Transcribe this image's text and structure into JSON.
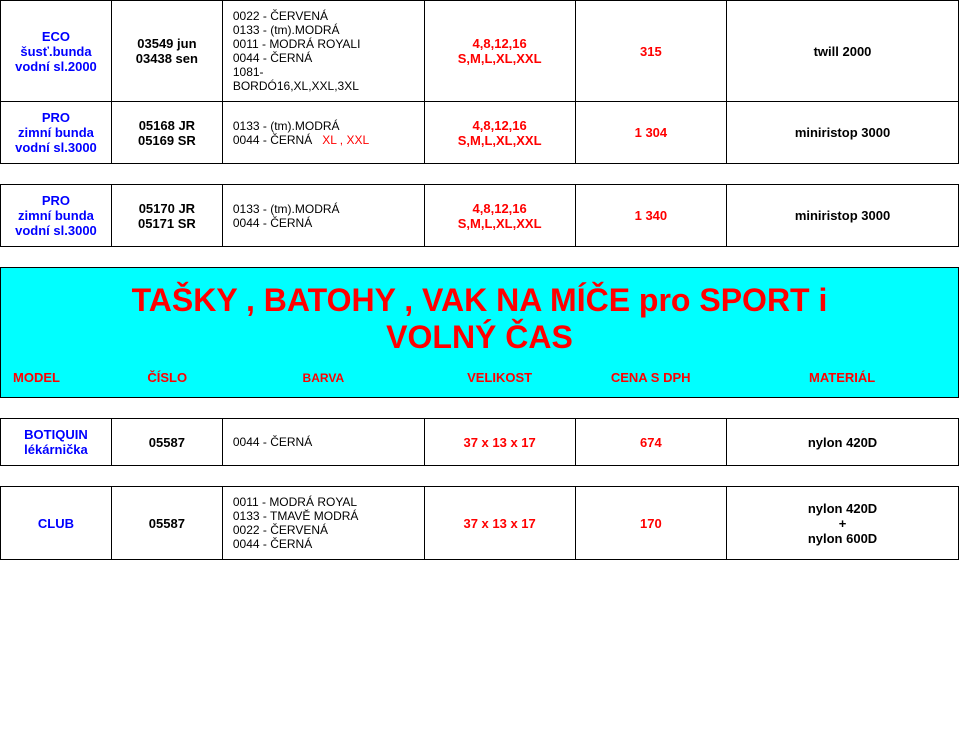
{
  "rows_top": [
    {
      "model_lines": [
        "ECO",
        "šusť.bunda",
        "vodní sl.2000"
      ],
      "num_lines": [
        "03549 jun",
        "03438 sen"
      ],
      "color_lines": [
        {
          "text": "0022 - ČERVENÁ",
          "red": false
        },
        {
          "text": "0133 - (tm).MODRÁ",
          "red": false
        },
        {
          "text": "0011 - MODRÁ ROYALI",
          "red": false
        },
        {
          "text": "0044 - ČERNÁ",
          "red": false
        },
        {
          "text": "1081-",
          "red": false
        },
        {
          "text": "BORDÓ16,XL,XXL,3XL",
          "red": false
        }
      ],
      "size_lines": [
        "4,8,12,16",
        "S,M,L,XL,XXL"
      ],
      "price": "315",
      "mat": "twill 2000"
    },
    {
      "model_lines": [
        "PRO",
        "zimní bunda",
        "vodní sl.3000"
      ],
      "num_lines": [
        "05168 JR",
        "05169 SR"
      ],
      "color_lines": [
        {
          "text": "0133 - (tm).MODRÁ",
          "red": false
        },
        {
          "text": "0044 - ČERNÁ",
          "red": false,
          "suffix": "XL , XXL",
          "suffix_red": true
        }
      ],
      "size_lines": [
        "4,8,12,16",
        "S,M,L,XL,XXL"
      ],
      "price": "1 304",
      "mat": "miniristop 3000"
    }
  ],
  "rows_mid": [
    {
      "model_lines": [
        "PRO",
        "zimní bunda",
        "vodní sl.3000"
      ],
      "num_lines": [
        "05170 JR",
        "05171 SR"
      ],
      "color_lines": [
        {
          "text": "0133 - (tm).MODRÁ",
          "red": false
        },
        {
          "text": "0044 - ČERNÁ",
          "red": false
        }
      ],
      "size_lines": [
        "4,8,12,16",
        "S,M,L,XL,XXL"
      ],
      "price": "1 340",
      "mat": "miniristop 3000"
    }
  ],
  "banner": {
    "title_lines": [
      "TAŠKY , BATOHY , VAK NA MÍČE pro SPORT i",
      "VOLNÝ ČAS"
    ]
  },
  "headers": {
    "model": "MODEL",
    "num": "ČÍSLO",
    "color": "BARVA",
    "size": "VELIKOST",
    "price": "CENA S DPH",
    "mat": "MATERIÁL"
  },
  "rows_bottom": [
    {
      "model_lines": [
        "BOTIQUIN",
        "lékárnička"
      ],
      "num_lines": [
        "05587"
      ],
      "color_lines": [
        {
          "text": "0044 - ČERNÁ",
          "red": false
        }
      ],
      "size_lines": [
        "37 x 13 x 17"
      ],
      "price": "674",
      "mat_lines": [
        "nylon 420D"
      ]
    },
    {
      "model_lines": [
        "CLUB"
      ],
      "num_lines": [
        "05587"
      ],
      "color_lines": [
        {
          "text": "0011 - MODRÁ ROYAL",
          "red": false
        },
        {
          "text": "0133 - TMAVĚ MODRÁ",
          "red": false
        },
        {
          "text": "0022 - ČERVENÁ",
          "red": false
        },
        {
          "text": "0044 - ČERNÁ",
          "red": false
        }
      ],
      "size_lines": [
        "37 x 13 x 17"
      ],
      "price": "170",
      "mat_lines": [
        "nylon 420D",
        "+",
        "nylon 600D"
      ]
    }
  ]
}
